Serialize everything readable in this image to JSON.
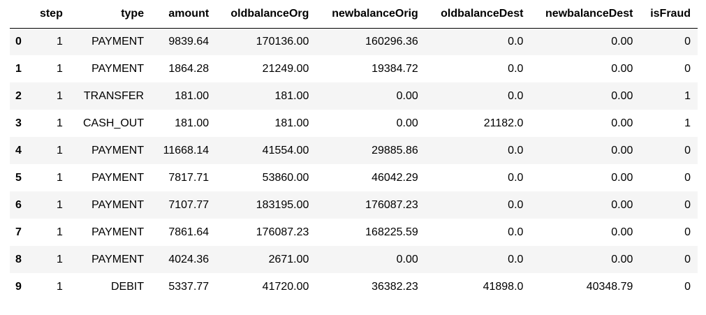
{
  "table": {
    "columns": [
      "",
      "step",
      "type",
      "amount",
      "oldbalanceOrg",
      "newbalanceOrig",
      "oldbalanceDest",
      "newbalanceDest",
      "isFraud"
    ],
    "rows": [
      [
        "0",
        "1",
        "PAYMENT",
        "9839.64",
        "170136.00",
        "160296.36",
        "0.0",
        "0.00",
        "0"
      ],
      [
        "1",
        "1",
        "PAYMENT",
        "1864.28",
        "21249.00",
        "19384.72",
        "0.0",
        "0.00",
        "0"
      ],
      [
        "2",
        "1",
        "TRANSFER",
        "181.00",
        "181.00",
        "0.00",
        "0.0",
        "0.00",
        "1"
      ],
      [
        "3",
        "1",
        "CASH_OUT",
        "181.00",
        "181.00",
        "0.00",
        "21182.0",
        "0.00",
        "1"
      ],
      [
        "4",
        "1",
        "PAYMENT",
        "11668.14",
        "41554.00",
        "29885.86",
        "0.0",
        "0.00",
        "0"
      ],
      [
        "5",
        "1",
        "PAYMENT",
        "7817.71",
        "53860.00",
        "46042.29",
        "0.0",
        "0.00",
        "0"
      ],
      [
        "6",
        "1",
        "PAYMENT",
        "7107.77",
        "183195.00",
        "176087.23",
        "0.0",
        "0.00",
        "0"
      ],
      [
        "7",
        "1",
        "PAYMENT",
        "7861.64",
        "176087.23",
        "168225.59",
        "0.0",
        "0.00",
        "0"
      ],
      [
        "8",
        "1",
        "PAYMENT",
        "4024.36",
        "2671.00",
        "0.00",
        "0.0",
        "0.00",
        "0"
      ],
      [
        "9",
        "1",
        "DEBIT",
        "5337.77",
        "41720.00",
        "36382.23",
        "41898.0",
        "40348.79",
        "0"
      ]
    ]
  }
}
